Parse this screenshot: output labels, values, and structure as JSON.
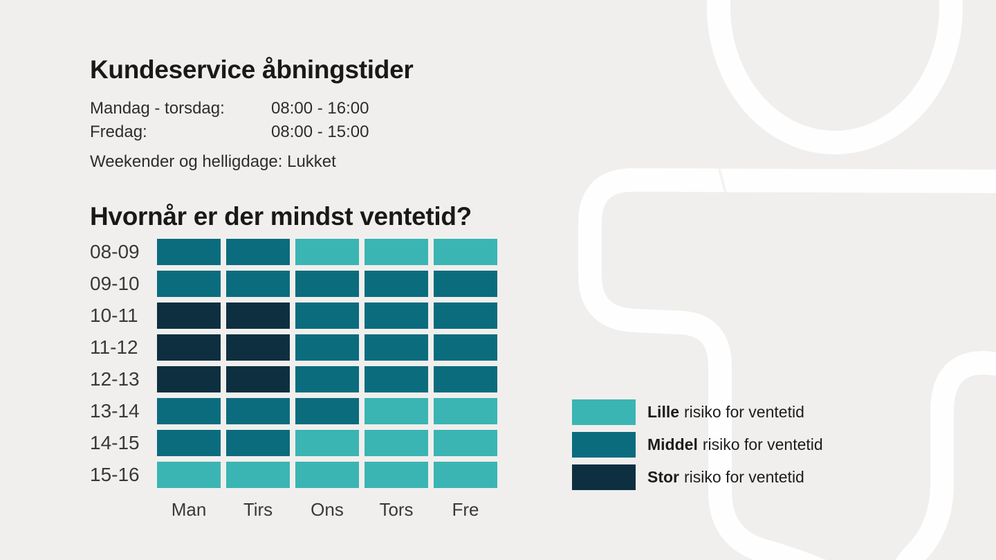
{
  "page": {
    "background_color": "#F0EFED",
    "watermark_color": "#FFFFFF"
  },
  "opening_hours": {
    "title": "Kundeservice åbningstider",
    "rows": [
      {
        "label": "Mandag - torsdag:",
        "value": "08:00 - 16:00"
      },
      {
        "label": "Fredag:",
        "value": "08:00 - 15:00"
      }
    ],
    "note": "Weekender og helligdage: Lukket"
  },
  "chart_data": {
    "type": "heatmap",
    "title": "Hvornår er der mindst ventetid?",
    "x_labels": [
      "Man",
      "Tirs",
      "Ons",
      "Tors",
      "Fre"
    ],
    "y_labels": [
      "08-09",
      "09-10",
      "10-11",
      "11-12",
      "12-13",
      "13-14",
      "14-15",
      "15-16"
    ],
    "values": [
      [
        "middel",
        "middel",
        "lille",
        "lille",
        "lille"
      ],
      [
        "middel",
        "middel",
        "middel",
        "middel",
        "middel"
      ],
      [
        "stor",
        "stor",
        "middel",
        "middel",
        "middel"
      ],
      [
        "stor",
        "stor",
        "middel",
        "middel",
        "middel"
      ],
      [
        "stor",
        "stor",
        "middel",
        "middel",
        "middel"
      ],
      [
        "middel",
        "middel",
        "middel",
        "lille",
        "lille"
      ],
      [
        "middel",
        "middel",
        "lille",
        "lille",
        "lille"
      ],
      [
        "lille",
        "lille",
        "lille",
        "lille",
        "lille"
      ]
    ],
    "level_colors": {
      "lille": "#3AB5B3",
      "middel": "#0B6C7E",
      "stor": "#0E2F40"
    },
    "legend_position": "right",
    "grid": false
  },
  "legend": {
    "items": [
      {
        "level": "lille",
        "bold": "Lille",
        "text": "risiko for ventetid",
        "color": "#3AB5B3"
      },
      {
        "level": "middel",
        "bold": "Middel",
        "text": "risiko for ventetid",
        "color": "#0B6C7E"
      },
      {
        "level": "stor",
        "bold": "Stor",
        "text": "risiko for ventetid",
        "color": "#0E2F40"
      }
    ]
  }
}
